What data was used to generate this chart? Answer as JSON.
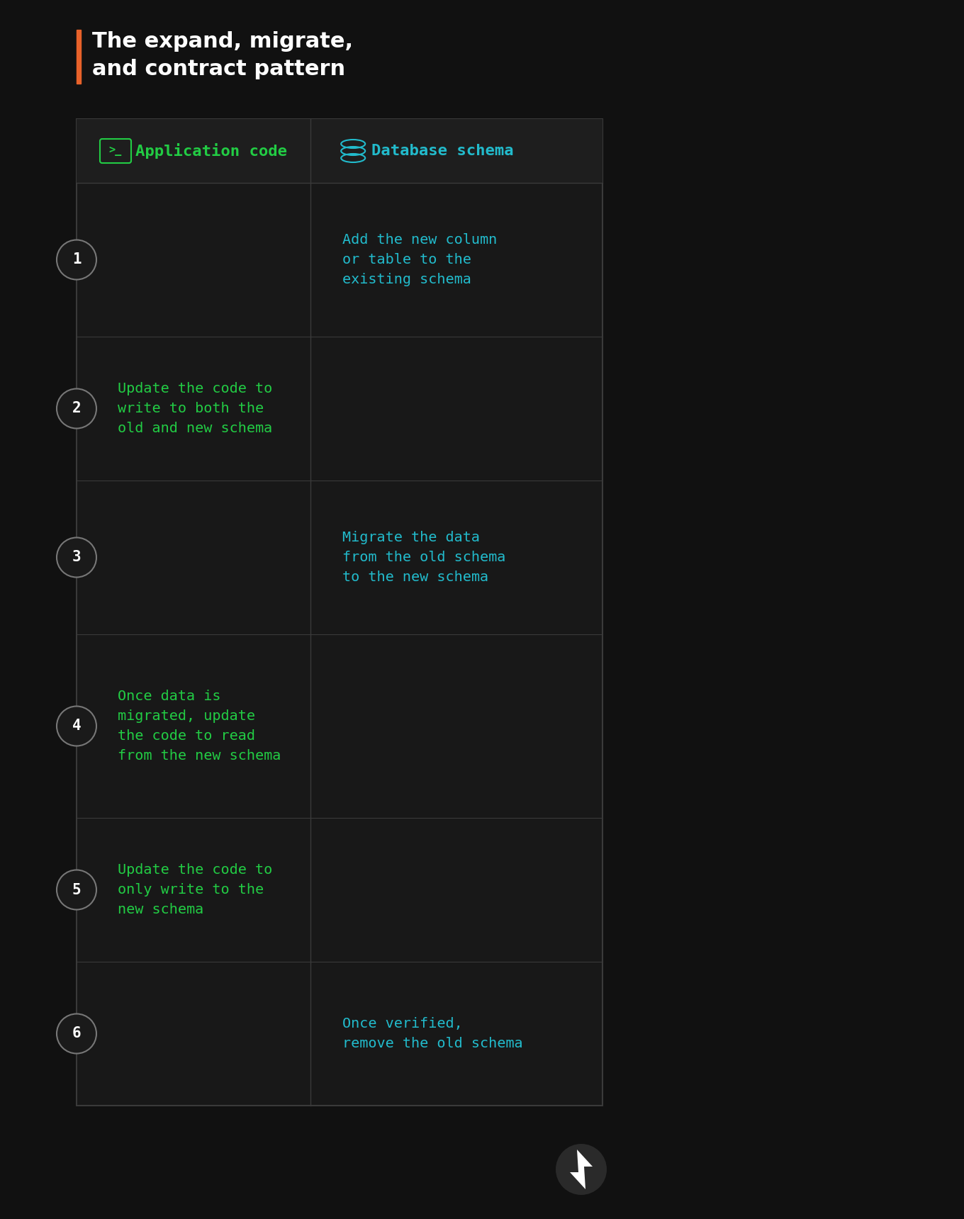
{
  "bg_color": "#111111",
  "table_bg": "#181818",
  "header_bg": "#1e1e1e",
  "border_color": "#3a3a3a",
  "title_text": "The expand, migrate,\nand contract pattern",
  "title_color": "#ffffff",
  "title_font_size": 22,
  "orange_bar_color": "#e8622a",
  "col1_header": "Application code",
  "col2_header": "Database schema",
  "col1_color": "#22cc44",
  "col2_color": "#22bbcc",
  "step_circle_bg": "#1a1a1a",
  "step_circle_border": "#777777",
  "step_number_color": "#ffffff",
  "content_font_size": 14.5,
  "header_font_size": 16,
  "rows": [
    {
      "step": 1,
      "col1_text": "",
      "col2_text": "Add the new column\nor table to the\nexisting schema"
    },
    {
      "step": 2,
      "col1_text": "Update the code to\nwrite to both the\nold and new schema",
      "col2_text": ""
    },
    {
      "step": 3,
      "col1_text": "",
      "col2_text": "Migrate the data\nfrom the old schema\nto the new schema"
    },
    {
      "step": 4,
      "col1_text": "Once data is\nmigrated, update\nthe code to read\nfrom the new schema",
      "col2_text": ""
    },
    {
      "step": 5,
      "col1_text": "Update the code to\nonly write to the\nnew schema",
      "col2_text": ""
    },
    {
      "step": 6,
      "col1_text": "",
      "col2_text": "Once verified,\nremove the old schema"
    }
  ]
}
